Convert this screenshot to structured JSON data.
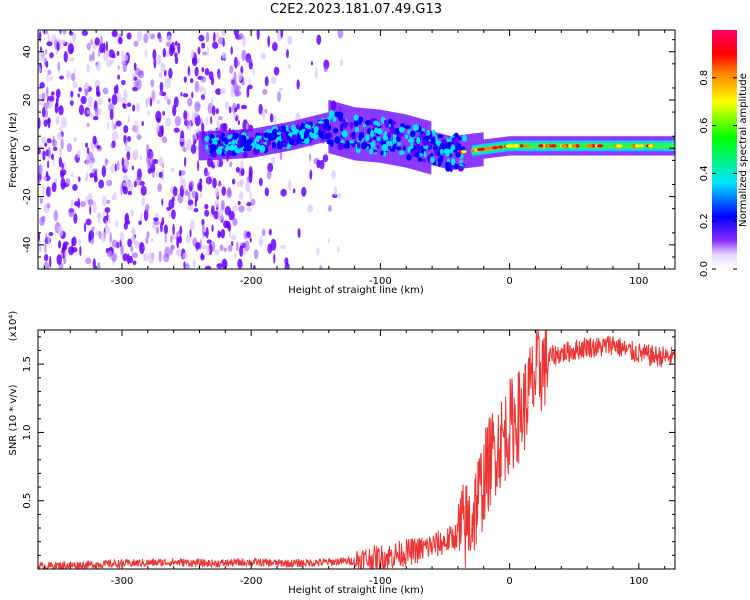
{
  "title": "C2E2.2023.181.07.49.G13",
  "chart_data": [
    {
      "type": "heatmap",
      "title": "C2E2.2023.181.07.49.G13",
      "xlabel": "Height of straight line (km)",
      "ylabel": "Frequency (Hz)",
      "xlim": [
        -365,
        128
      ],
      "ylim": [
        -50,
        49
      ],
      "x_ticks": [
        -300,
        -200,
        -100,
        0,
        100
      ],
      "y_ticks": [
        -40,
        -20,
        0,
        20,
        40
      ],
      "colorbar": {
        "label": "Normalized spectral amplitude",
        "range": [
          0,
          1
        ],
        "ticks": [
          0.0,
          0.2,
          0.4,
          0.6,
          0.8
        ],
        "tick_labels": [
          "0.0",
          "0.2",
          "0.4",
          "0.6",
          "0.8"
        ],
        "colormap": [
          "#ffffff",
          "#6a00ff",
          "#0000ff",
          "#00e5ff",
          "#00ff00",
          "#ffff00",
          "#ff8000",
          "#ff0000",
          "#ff00aa"
        ]
      },
      "ridge": {
        "x": [
          -235,
          -200,
          -170,
          -140,
          -120,
          -100,
          -80,
          -60,
          -45,
          -30,
          -15,
          0,
          20,
          60,
          100,
          128
        ],
        "frequency": [
          1,
          2,
          5,
          9,
          6,
          5,
          3,
          0,
          -2,
          -1,
          0,
          1,
          1,
          1,
          1,
          1
        ]
      }
    },
    {
      "type": "line",
      "xlabel": "Height of straight line (km)",
      "ylabel": "SNR (10 * v/v)",
      "y_scale_label": "(x10⁴)",
      "xlim": [
        -365,
        128
      ],
      "ylim": [
        0.0,
        1.75
      ],
      "x_ticks": [
        -300,
        -200,
        -100,
        0,
        100
      ],
      "y_ticks": [
        0.5,
        1.0,
        1.5
      ],
      "y_tick_labels": [
        "0.5",
        "1.0",
        "1.5"
      ],
      "color": "#ee3333",
      "series": [
        {
          "name": "SNR",
          "x": [
            -365,
            -330,
            -300,
            -260,
            -230,
            -200,
            -170,
            -140,
            -120,
            -100,
            -90,
            -80,
            -70,
            -60,
            -50,
            -40,
            -30,
            -25,
            -20,
            -15,
            -10,
            -5,
            0,
            5,
            10,
            15,
            20,
            25,
            30,
            40,
            50,
            60,
            70,
            80,
            90,
            100,
            110,
            128
          ],
          "values": [
            0.02,
            0.03,
            0.04,
            0.05,
            0.04,
            0.05,
            0.04,
            0.05,
            0.06,
            0.08,
            0.1,
            0.12,
            0.14,
            0.17,
            0.2,
            0.25,
            0.35,
            0.5,
            0.65,
            0.8,
            0.9,
            0.95,
            1.05,
            1.1,
            1.15,
            1.3,
            1.4,
            1.48,
            1.55,
            1.58,
            1.6,
            1.63,
            1.62,
            1.65,
            1.6,
            1.58,
            1.56,
            1.55
          ]
        }
      ]
    }
  ]
}
